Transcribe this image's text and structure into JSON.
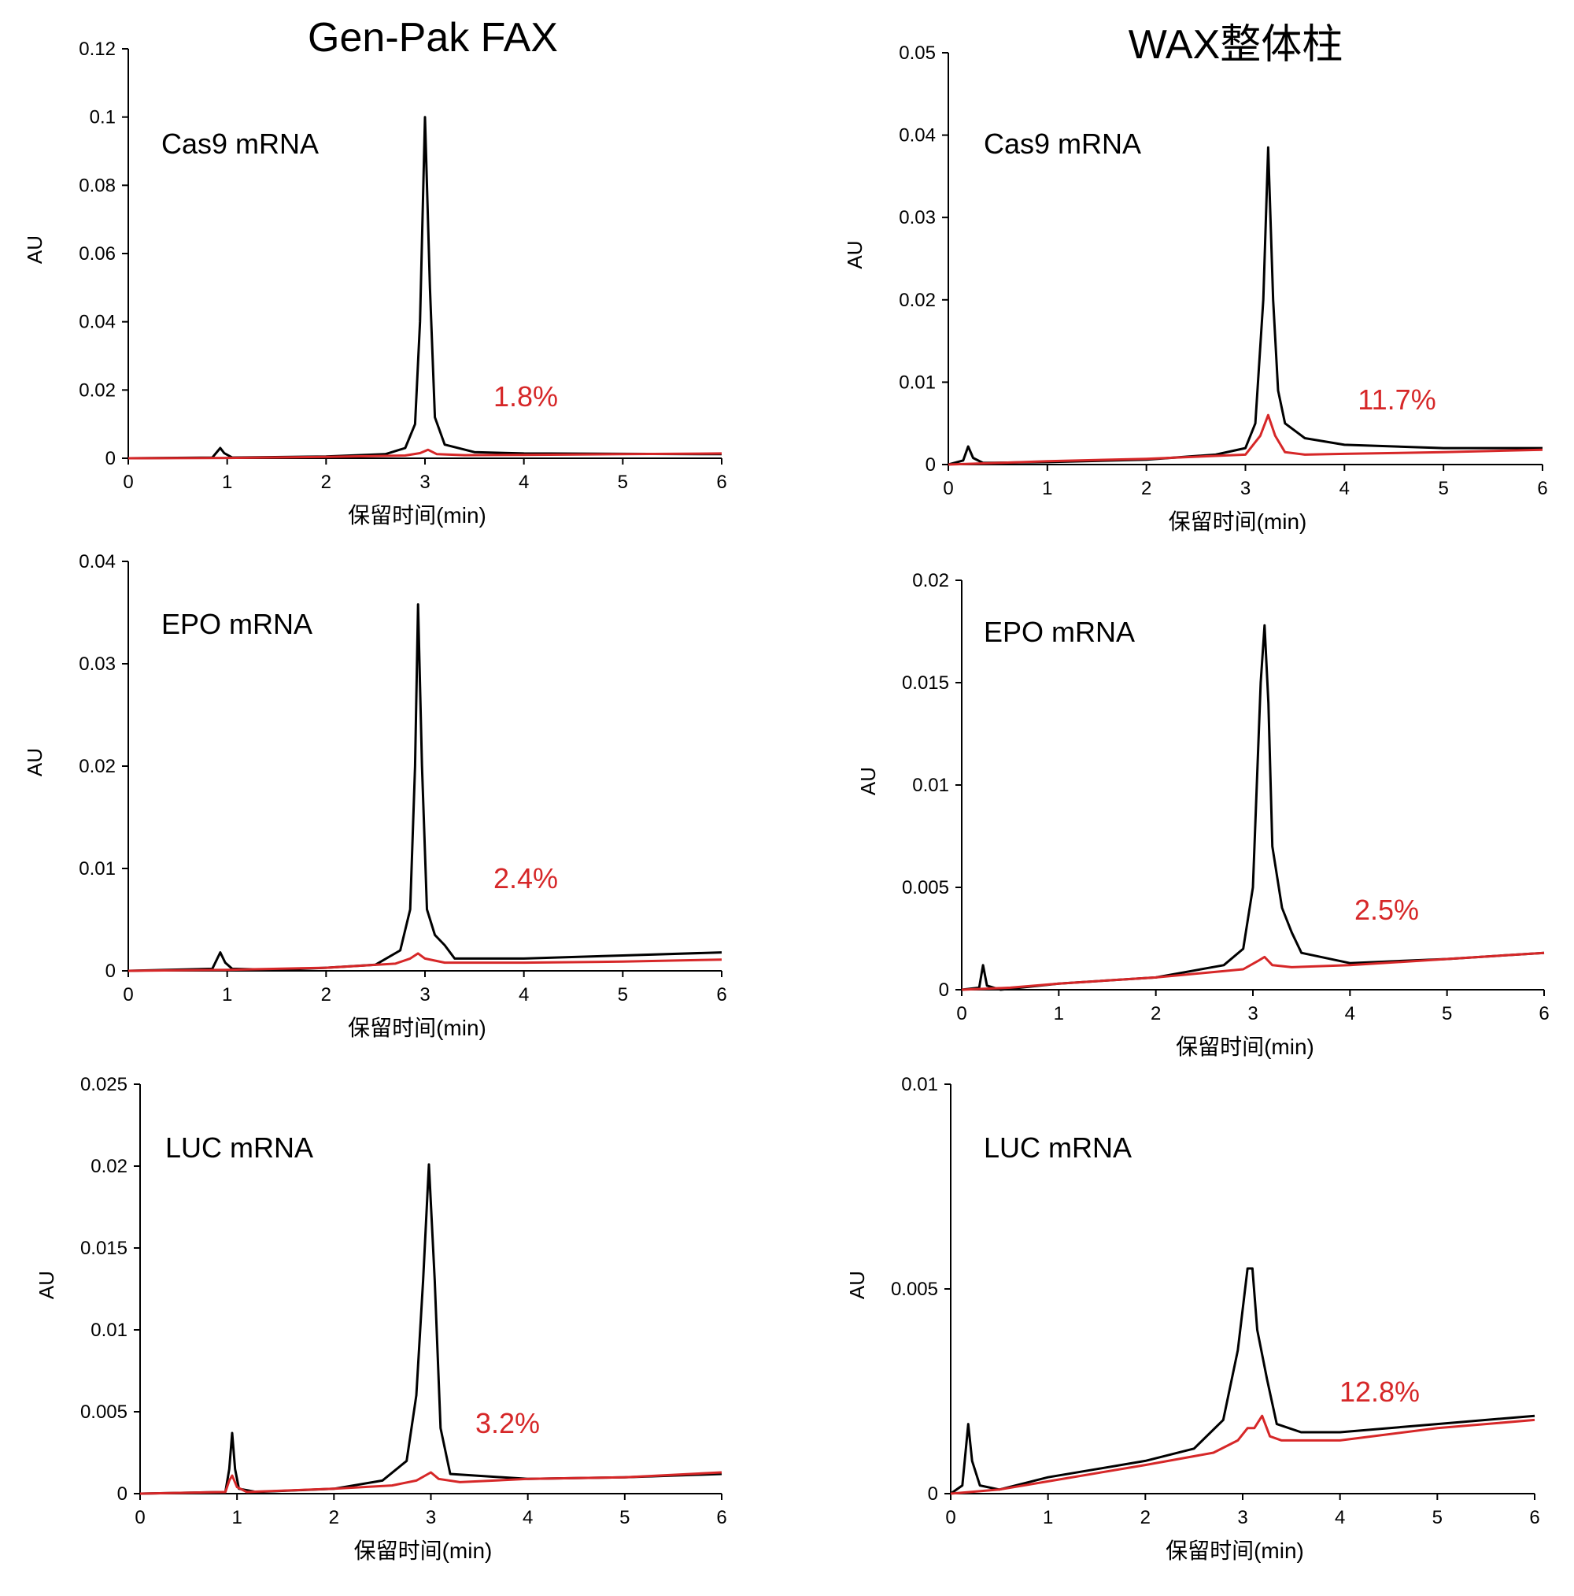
{
  "column_titles": [
    "Gen-Pak FAX",
    "WAX整体柱"
  ],
  "colors": {
    "sample": "#000000",
    "impurity": "#d62728"
  },
  "chart_data": [
    {
      "type": "line",
      "panel": "left-top",
      "annotation": "Cas9 mRNA",
      "percent": "1.8%",
      "xlabel": "保留时间(min)",
      "ylabel": "AU",
      "xlim": [
        0,
        6
      ],
      "ylim": [
        0,
        0.12
      ],
      "xticks": [
        "0",
        "1",
        "2",
        "3",
        "4",
        "5",
        "6"
      ],
      "yticks": [
        "0",
        "0.02",
        "0.04",
        "0.06",
        "0.08",
        "0.1",
        "0.12"
      ],
      "series": [
        {
          "color": "#000000",
          "points": [
            [
              0,
              0
            ],
            [
              0.85,
              0.0002
            ],
            [
              0.93,
              0.003
            ],
            [
              0.97,
              0.0015
            ],
            [
              1.05,
              0.0002
            ],
            [
              2.0,
              0.0005
            ],
            [
              2.6,
              0.0012
            ],
            [
              2.8,
              0.003
            ],
            [
              2.9,
              0.01
            ],
            [
              2.95,
              0.04
            ],
            [
              3.0,
              0.1
            ],
            [
              3.05,
              0.05
            ],
            [
              3.1,
              0.012
            ],
            [
              3.2,
              0.004
            ],
            [
              3.5,
              0.0018
            ],
            [
              4.0,
              0.0014
            ],
            [
              5.0,
              0.0013
            ],
            [
              6.0,
              0.0012
            ]
          ]
        },
        {
          "color": "#d62728",
          "points": [
            [
              0,
              0
            ],
            [
              1.0,
              0.0001
            ],
            [
              2.0,
              0.0004
            ],
            [
              2.8,
              0.0008
            ],
            [
              2.95,
              0.0015
            ],
            [
              3.03,
              0.0025
            ],
            [
              3.12,
              0.0012
            ],
            [
              3.4,
              0.0009
            ],
            [
              4.0,
              0.001
            ],
            [
              5.0,
              0.0012
            ],
            [
              6.0,
              0.0014
            ]
          ]
        }
      ]
    },
    {
      "type": "line",
      "panel": "right-top",
      "annotation": "Cas9 mRNA",
      "percent": "11.7%",
      "xlabel": "保留时间(min)",
      "ylabel": "AU",
      "xlim": [
        0,
        6
      ],
      "ylim": [
        0,
        0.05
      ],
      "xticks": [
        "0",
        "1",
        "2",
        "3",
        "4",
        "5",
        "6"
      ],
      "yticks": [
        "0",
        "0.01",
        "0.02",
        "0.03",
        "0.04",
        "0.05"
      ],
      "series": [
        {
          "color": "#000000",
          "points": [
            [
              0,
              0
            ],
            [
              0.15,
              0.0005
            ],
            [
              0.2,
              0.0022
            ],
            [
              0.25,
              0.0008
            ],
            [
              0.35,
              0.0002
            ],
            [
              1.0,
              0.0003
            ],
            [
              2.0,
              0.0006
            ],
            [
              2.7,
              0.0012
            ],
            [
              3.0,
              0.002
            ],
            [
              3.1,
              0.005
            ],
            [
              3.18,
              0.02
            ],
            [
              3.23,
              0.0385
            ],
            [
              3.28,
              0.02
            ],
            [
              3.33,
              0.009
            ],
            [
              3.4,
              0.005
            ],
            [
              3.6,
              0.0032
            ],
            [
              4.0,
              0.0024
            ],
            [
              5.0,
              0.002
            ],
            [
              6.0,
              0.002
            ]
          ]
        },
        {
          "color": "#d62728",
          "points": [
            [
              0,
              0
            ],
            [
              0.5,
              0.0002
            ],
            [
              1.0,
              0.0004
            ],
            [
              2.0,
              0.0007
            ],
            [
              3.0,
              0.0012
            ],
            [
              3.15,
              0.0035
            ],
            [
              3.23,
              0.006
            ],
            [
              3.3,
              0.0035
            ],
            [
              3.4,
              0.0015
            ],
            [
              3.6,
              0.0012
            ],
            [
              4.0,
              0.0013
            ],
            [
              5.0,
              0.0015
            ],
            [
              6.0,
              0.0018
            ]
          ]
        }
      ]
    },
    {
      "type": "line",
      "panel": "left-middle",
      "annotation": "EPO mRNA",
      "percent": "2.4%",
      "xlabel": "保留时间(min)",
      "ylabel": "AU",
      "xlim": [
        0,
        6
      ],
      "ylim": [
        0,
        0.04
      ],
      "xticks": [
        "0",
        "1",
        "2",
        "3",
        "4",
        "5",
        "6"
      ],
      "yticks": [
        "0",
        "0.01",
        "0.02",
        "0.03",
        "0.04"
      ],
      "series": [
        {
          "color": "#000000",
          "points": [
            [
              0,
              0
            ],
            [
              0.85,
              0.0002
            ],
            [
              0.93,
              0.0018
            ],
            [
              0.98,
              0.0008
            ],
            [
              1.05,
              0.0002
            ],
            [
              1.5,
              0.0001
            ],
            [
              2.0,
              0.0003
            ],
            [
              2.5,
              0.0006
            ],
            [
              2.75,
              0.002
            ],
            [
              2.85,
              0.006
            ],
            [
              2.9,
              0.02
            ],
            [
              2.93,
              0.0358
            ],
            [
              2.97,
              0.02
            ],
            [
              3.02,
              0.006
            ],
            [
              3.1,
              0.0035
            ],
            [
              3.2,
              0.0025
            ],
            [
              3.3,
              0.0012
            ],
            [
              4.0,
              0.0012
            ],
            [
              5.0,
              0.0015
            ],
            [
              6.0,
              0.0018
            ]
          ]
        },
        {
          "color": "#d62728",
          "points": [
            [
              0,
              0
            ],
            [
              1.0,
              0.0001
            ],
            [
              2.0,
              0.0003
            ],
            [
              2.7,
              0.0007
            ],
            [
              2.85,
              0.0012
            ],
            [
              2.93,
              0.0017
            ],
            [
              3.0,
              0.0012
            ],
            [
              3.2,
              0.0008
            ],
            [
              3.5,
              0.0008
            ],
            [
              4.0,
              0.0008
            ],
            [
              5.0,
              0.0009
            ],
            [
              6.0,
              0.0011
            ]
          ]
        }
      ]
    },
    {
      "type": "line",
      "panel": "right-middle",
      "annotation": "EPO mRNA",
      "percent": "2.5%",
      "xlabel": "保留时间(min)",
      "ylabel": "AU",
      "xlim": [
        0,
        6
      ],
      "ylim": [
        0,
        0.02
      ],
      "xticks": [
        "0",
        "1",
        "2",
        "3",
        "4",
        "5",
        "6"
      ],
      "yticks": [
        "0",
        "0.005",
        "0.01",
        "0.015",
        "0.02"
      ],
      "series": [
        {
          "color": "#000000",
          "points": [
            [
              0,
              0
            ],
            [
              0.18,
              0.0001
            ],
            [
              0.22,
              0.0012
            ],
            [
              0.26,
              0.0002
            ],
            [
              0.4,
              0.0
            ],
            [
              1.0,
              0.0003
            ],
            [
              2.0,
              0.0006
            ],
            [
              2.7,
              0.0012
            ],
            [
              2.9,
              0.002
            ],
            [
              3.0,
              0.005
            ],
            [
              3.08,
              0.015
            ],
            [
              3.12,
              0.0178
            ],
            [
              3.16,
              0.014
            ],
            [
              3.2,
              0.007
            ],
            [
              3.3,
              0.004
            ],
            [
              3.4,
              0.0028
            ],
            [
              3.5,
              0.0018
            ],
            [
              4.0,
              0.0013
            ],
            [
              5.0,
              0.0015
            ],
            [
              6.0,
              0.0018
            ]
          ]
        },
        {
          "color": "#d62728",
          "points": [
            [
              0,
              0
            ],
            [
              0.5,
              0.0001
            ],
            [
              1.0,
              0.0003
            ],
            [
              2.0,
              0.0006
            ],
            [
              2.9,
              0.001
            ],
            [
              3.05,
              0.0014
            ],
            [
              3.12,
              0.0016
            ],
            [
              3.2,
              0.0012
            ],
            [
              3.4,
              0.0011
            ],
            [
              4.0,
              0.0012
            ],
            [
              5.0,
              0.0015
            ],
            [
              6.0,
              0.0018
            ]
          ]
        }
      ]
    },
    {
      "type": "line",
      "panel": "left-bottom",
      "annotation": "LUC mRNA",
      "percent": "3.2%",
      "xlabel": "保留时间(min)",
      "ylabel": "AU",
      "xlim": [
        0,
        6
      ],
      "ylim": [
        0,
        0.025
      ],
      "xticks": [
        "0",
        "1",
        "2",
        "3",
        "4",
        "5",
        "6"
      ],
      "yticks": [
        "0",
        "0.005",
        "0.01",
        "0.015",
        "0.02",
        "0.025"
      ],
      "series": [
        {
          "color": "#000000",
          "points": [
            [
              0,
              0
            ],
            [
              0.88,
              0.0001
            ],
            [
              0.92,
              0.0015
            ],
            [
              0.95,
              0.0037
            ],
            [
              0.98,
              0.0015
            ],
            [
              1.02,
              0.0003
            ],
            [
              1.2,
              0.0001
            ],
            [
              2.0,
              0.0003
            ],
            [
              2.5,
              0.0008
            ],
            [
              2.75,
              0.002
            ],
            [
              2.85,
              0.006
            ],
            [
              2.92,
              0.013
            ],
            [
              2.98,
              0.0201
            ],
            [
              3.04,
              0.013
            ],
            [
              3.1,
              0.004
            ],
            [
              3.2,
              0.0012
            ],
            [
              4.0,
              0.0009
            ],
            [
              5.0,
              0.001
            ],
            [
              6.0,
              0.0012
            ]
          ]
        },
        {
          "color": "#d62728",
          "points": [
            [
              0,
              0
            ],
            [
              0.88,
              0.0001
            ],
            [
              0.92,
              0.0008
            ],
            [
              0.95,
              0.0011
            ],
            [
              1.0,
              0.0004
            ],
            [
              1.1,
              0.0001
            ],
            [
              2.0,
              0.0003
            ],
            [
              2.6,
              0.0005
            ],
            [
              2.85,
              0.0008
            ],
            [
              3.0,
              0.0013
            ],
            [
              3.08,
              0.0009
            ],
            [
              3.3,
              0.0007
            ],
            [
              4.0,
              0.0009
            ],
            [
              5.0,
              0.001
            ],
            [
              6.0,
              0.0013
            ]
          ]
        }
      ]
    },
    {
      "type": "line",
      "panel": "right-bottom",
      "annotation": "LUC mRNA",
      "percent": "12.8%",
      "xlabel": "保留时间(min)",
      "ylabel": "AU",
      "xlim": [
        0,
        6
      ],
      "ylim": [
        0,
        0.01
      ],
      "xticks": [
        "0",
        "1",
        "2",
        "3",
        "4",
        "5",
        "6"
      ],
      "yticks": [
        "0",
        "0.005",
        "0.01"
      ],
      "series": [
        {
          "color": "#000000",
          "points": [
            [
              0,
              0
            ],
            [
              0.12,
              0.0002
            ],
            [
              0.18,
              0.0017
            ],
            [
              0.22,
              0.0008
            ],
            [
              0.3,
              0.0002
            ],
            [
              0.5,
              0.0001
            ],
            [
              1.0,
              0.0004
            ],
            [
              1.5,
              0.0006
            ],
            [
              2.0,
              0.0008
            ],
            [
              2.5,
              0.0011
            ],
            [
              2.8,
              0.0018
            ],
            [
              2.95,
              0.0035
            ],
            [
              3.05,
              0.0055
            ],
            [
              3.1,
              0.0055
            ],
            [
              3.15,
              0.004
            ],
            [
              3.2,
              0.0034
            ],
            [
              3.25,
              0.0028
            ],
            [
              3.35,
              0.0017
            ],
            [
              3.6,
              0.0015
            ],
            [
              4.0,
              0.0015
            ],
            [
              5.0,
              0.0017
            ],
            [
              6.0,
              0.0019
            ]
          ]
        },
        {
          "color": "#d62728",
          "points": [
            [
              0,
              0
            ],
            [
              0.5,
              0.0001
            ],
            [
              1.0,
              0.0003
            ],
            [
              2.0,
              0.0007
            ],
            [
              2.7,
              0.001
            ],
            [
              2.95,
              0.0013
            ],
            [
              3.05,
              0.0016
            ],
            [
              3.12,
              0.0016
            ],
            [
              3.2,
              0.0019
            ],
            [
              3.28,
              0.0014
            ],
            [
              3.4,
              0.0013
            ],
            [
              4.0,
              0.0013
            ],
            [
              5.0,
              0.0016
            ],
            [
              6.0,
              0.0018
            ]
          ]
        }
      ]
    }
  ]
}
